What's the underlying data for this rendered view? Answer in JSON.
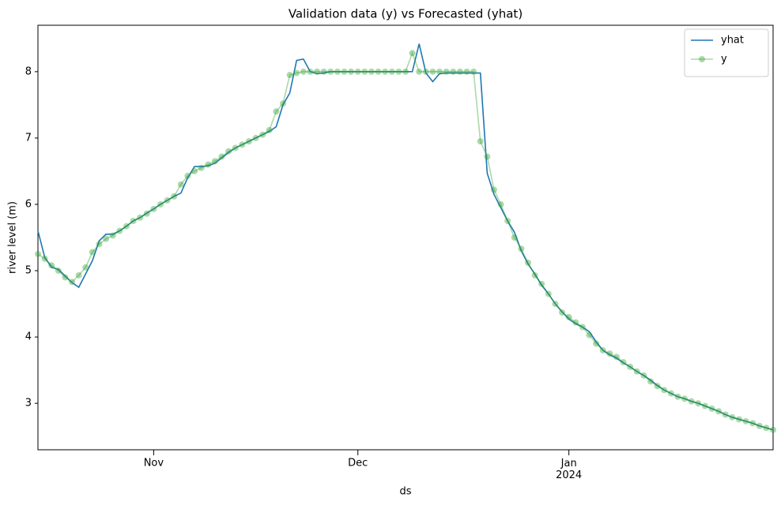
{
  "chart_data": {
    "type": "line",
    "title": "Validation data (y) vs Forecasted (yhat)",
    "xlabel": "ds",
    "ylabel": "river level (m)",
    "xlim": [
      0,
      108
    ],
    "xticks": [
      {
        "value": 17,
        "label": "Nov"
      },
      {
        "value": 47,
        "label": "Dec"
      },
      {
        "value": 78,
        "label": [
          "Jan",
          "2024"
        ]
      }
    ],
    "ylim": [
      2.3,
      8.7
    ],
    "yticks": [
      3,
      4,
      5,
      6,
      7,
      8
    ],
    "legend": "upper right",
    "series": [
      {
        "name": "yhat",
        "color": "#1f77b4",
        "marker": false,
        "values": [
          5.6,
          5.2,
          5.05,
          5.02,
          4.92,
          4.82,
          4.75,
          4.95,
          5.15,
          5.45,
          5.55,
          5.55,
          5.6,
          5.67,
          5.75,
          5.8,
          5.87,
          5.93,
          6.0,
          6.06,
          6.12,
          6.17,
          6.4,
          6.57,
          6.57,
          6.58,
          6.62,
          6.7,
          6.78,
          6.85,
          6.9,
          6.95,
          7.0,
          7.05,
          7.1,
          7.17,
          7.5,
          7.68,
          8.17,
          8.19,
          8.0,
          7.97,
          7.98,
          8.0,
          8.0,
          8.0,
          8.0,
          8.0,
          8.0,
          8.0,
          8.0,
          8.0,
          8.0,
          8.0,
          8.0,
          8.0,
          8.42,
          7.98,
          7.85,
          7.97,
          7.98,
          7.98,
          7.98,
          7.98,
          7.98,
          7.98,
          6.47,
          6.15,
          5.95,
          5.75,
          5.58,
          5.3,
          5.1,
          4.95,
          4.78,
          4.65,
          4.5,
          4.38,
          4.27,
          4.2,
          4.15,
          4.08,
          3.93,
          3.8,
          3.73,
          3.68,
          3.61,
          3.55,
          3.48,
          3.42,
          3.35,
          3.27,
          3.2,
          3.15,
          3.1,
          3.07,
          3.03,
          3.0,
          2.96,
          2.92,
          2.88,
          2.83,
          2.79,
          2.76,
          2.73,
          2.7,
          2.66,
          2.63,
          2.6
        ]
      },
      {
        "name": "y",
        "color": "#2ca02c",
        "marker": true,
        "values": [
          5.25,
          5.18,
          5.08,
          5.0,
          4.9,
          4.83,
          4.93,
          5.05,
          5.28,
          5.4,
          5.48,
          5.53,
          5.6,
          5.67,
          5.75,
          5.8,
          5.86,
          5.93,
          6.0,
          6.06,
          6.12,
          6.3,
          6.43,
          6.5,
          6.55,
          6.6,
          6.65,
          6.72,
          6.8,
          6.85,
          6.9,
          6.95,
          7.0,
          7.05,
          7.12,
          7.4,
          7.52,
          7.95,
          7.98,
          8.0,
          8.0,
          8.0,
          8.0,
          8.0,
          8.0,
          8.0,
          8.0,
          8.0,
          8.0,
          8.0,
          8.0,
          8.0,
          8.0,
          8.0,
          8.0,
          8.28,
          8.0,
          8.0,
          8.0,
          8.0,
          8.0,
          8.0,
          8.0,
          8.0,
          8.0,
          6.95,
          6.72,
          6.22,
          6.0,
          5.75,
          5.5,
          5.33,
          5.12,
          4.93,
          4.8,
          4.65,
          4.5,
          4.37,
          4.3,
          4.22,
          4.15,
          4.03,
          3.9,
          3.8,
          3.75,
          3.7,
          3.62,
          3.55,
          3.48,
          3.42,
          3.33,
          3.26,
          3.2,
          3.15,
          3.1,
          3.07,
          3.03,
          3.0,
          2.96,
          2.92,
          2.88,
          2.83,
          2.79,
          2.76,
          2.73,
          2.7,
          2.66,
          2.63,
          2.6
        ]
      }
    ]
  }
}
